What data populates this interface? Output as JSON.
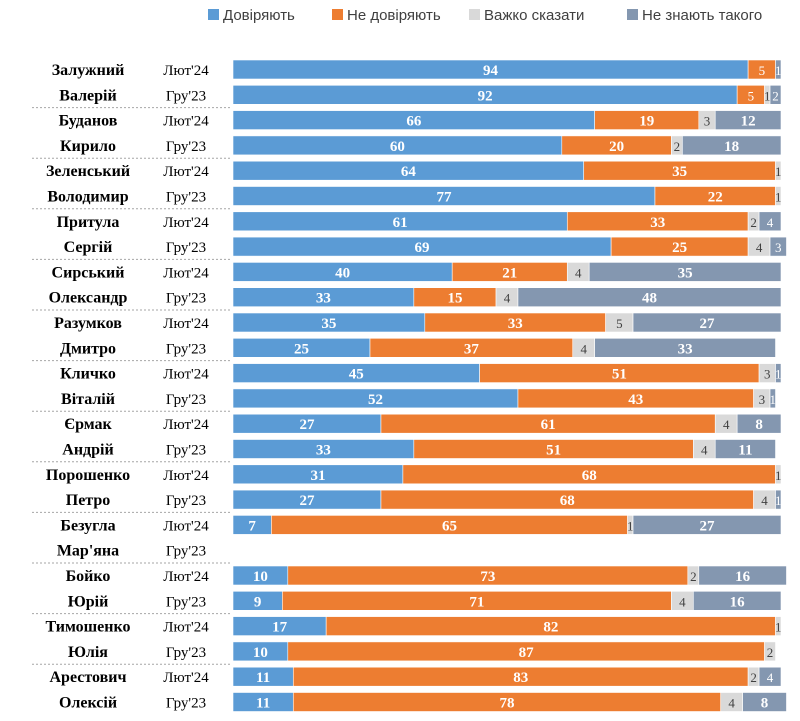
{
  "chart_data": {
    "type": "bar",
    "orientation": "horizontal",
    "stacked": true,
    "percent_scale": [
      0,
      100
    ],
    "legend_position": "top",
    "series": [
      {
        "name": "Довіряють",
        "color": "#5b9bd5"
      },
      {
        "name": "Не довіряють",
        "color": "#ed7d31"
      },
      {
        "name": "Важко сказати",
        "color": "#d9d9d9"
      },
      {
        "name": "Не знають такого",
        "color": "#8497b0"
      }
    ],
    "people": [
      {
        "first_line": "Залужний",
        "second_line": "Валерій",
        "rows": [
          {
            "period": "Лют'24",
            "values": [
              94,
              5,
              null,
              1
            ]
          },
          {
            "period": "Гру'23",
            "values": [
              92,
              5,
              1,
              2
            ]
          }
        ]
      },
      {
        "first_line": "Буданов",
        "second_line": "Кирило",
        "rows": [
          {
            "period": "Лют'24",
            "values": [
              66,
              19,
              3,
              12
            ]
          },
          {
            "period": "Гру'23",
            "values": [
              60,
              20,
              2,
              18
            ]
          }
        ]
      },
      {
        "first_line": "Зеленський",
        "second_line": "Володимир",
        "rows": [
          {
            "period": "Лют'24",
            "values": [
              64,
              35,
              1,
              null
            ]
          },
          {
            "period": "Гру'23",
            "values": [
              77,
              22,
              1,
              null
            ]
          }
        ]
      },
      {
        "first_line": "Притула",
        "second_line": "Сергій",
        "rows": [
          {
            "period": "Лют'24",
            "values": [
              61,
              33,
              2,
              4
            ]
          },
          {
            "period": "Гру'23",
            "values": [
              69,
              25,
              4,
              3
            ]
          }
        ]
      },
      {
        "first_line": "Сирський",
        "second_line": "Олександр",
        "rows": [
          {
            "period": "Лют'24",
            "values": [
              40,
              21,
              4,
              35
            ]
          },
          {
            "period": "Гру'23",
            "values": [
              33,
              15,
              4,
              48
            ]
          }
        ]
      },
      {
        "first_line": "Разумков",
        "second_line": "Дмитро",
        "rows": [
          {
            "period": "Лют'24",
            "values": [
              35,
              33,
              5,
              27
            ]
          },
          {
            "period": "Гру'23",
            "values": [
              25,
              37,
              4,
              33
            ]
          }
        ]
      },
      {
        "first_line": "Кличко",
        "second_line": "Віталій",
        "rows": [
          {
            "period": "Лют'24",
            "values": [
              45,
              51,
              3,
              1
            ]
          },
          {
            "period": "Гру'23",
            "values": [
              52,
              43,
              3,
              1
            ]
          }
        ]
      },
      {
        "first_line": "Єрмак",
        "second_line": "Андрій",
        "rows": [
          {
            "period": "Лют'24",
            "values": [
              27,
              61,
              4,
              8
            ]
          },
          {
            "period": "Гру'23",
            "values": [
              33,
              51,
              4,
              11
            ]
          }
        ]
      },
      {
        "first_line": "Порошенко",
        "second_line": "Петро",
        "rows": [
          {
            "period": "Лют'24",
            "values": [
              31,
              68,
              1,
              null
            ]
          },
          {
            "period": "Гру'23",
            "values": [
              27,
              68,
              4,
              1
            ]
          }
        ]
      },
      {
        "first_line": "Безугла",
        "second_line": "Мар'яна",
        "rows": [
          {
            "period": "Лют'24",
            "values": [
              7,
              65,
              1,
              27
            ]
          },
          {
            "period": "Гру'23",
            "values": [
              null,
              null,
              null,
              null
            ]
          }
        ]
      },
      {
        "first_line": "Бойко",
        "second_line": "Юрій",
        "rows": [
          {
            "period": "Лют'24",
            "values": [
              10,
              73,
              2,
              16
            ]
          },
          {
            "period": "Гру'23",
            "values": [
              9,
              71,
              4,
              16
            ]
          }
        ]
      },
      {
        "first_line": "Тимошенко",
        "second_line": "Юлія",
        "rows": [
          {
            "period": "Лют'24",
            "values": [
              17,
              82,
              1,
              null
            ]
          },
          {
            "period": "Гру'23",
            "values": [
              10,
              87,
              2,
              null
            ]
          }
        ]
      },
      {
        "first_line": "Арестович",
        "second_line": "Олексій",
        "rows": [
          {
            "period": "Лют'24",
            "values": [
              11,
              83,
              2,
              4
            ]
          },
          {
            "period": "Гру'23",
            "values": [
              11,
              78,
              4,
              8
            ]
          }
        ]
      }
    ]
  }
}
